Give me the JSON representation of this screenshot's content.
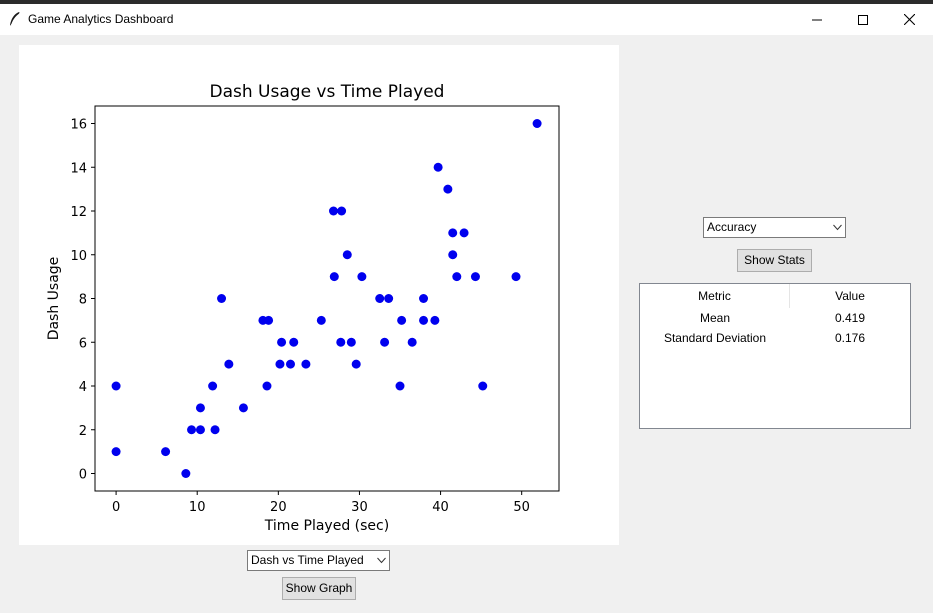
{
  "window": {
    "title": "Game Analytics Dashboard"
  },
  "graph_controls": {
    "selected_graph": "Dash vs Time Played",
    "show_graph_label": "Show Graph"
  },
  "stats_controls": {
    "selected_metric": "Accuracy",
    "show_stats_label": "Show Stats"
  },
  "stats_table": {
    "columns": [
      "Metric",
      "Value"
    ],
    "rows": [
      {
        "metric": "Mean",
        "value": "0.419"
      },
      {
        "metric": "Standard Deviation",
        "value": "0.176"
      }
    ]
  },
  "colors": {
    "point": "#0000ee"
  },
  "chart_data": {
    "type": "scatter",
    "title": "Dash Usage vs Time Played",
    "xlabel": "Time Played (sec)",
    "ylabel": "Dash Usage",
    "xlim": [
      -2.6,
      54.6
    ],
    "ylim": [
      -0.8,
      16.8
    ],
    "xticks": [
      0,
      10,
      20,
      30,
      40,
      50
    ],
    "yticks": [
      0,
      2,
      4,
      6,
      8,
      10,
      12,
      14,
      16
    ],
    "grid": false,
    "points": [
      {
        "x": 0,
        "y": 4
      },
      {
        "x": 0,
        "y": 1
      },
      {
        "x": 6.1,
        "y": 1
      },
      {
        "x": 8.6,
        "y": 0
      },
      {
        "x": 9.3,
        "y": 2
      },
      {
        "x": 10.4,
        "y": 3
      },
      {
        "x": 10.4,
        "y": 2
      },
      {
        "x": 11.9,
        "y": 4
      },
      {
        "x": 12.2,
        "y": 2
      },
      {
        "x": 13,
        "y": 8
      },
      {
        "x": 13.9,
        "y": 5
      },
      {
        "x": 15.7,
        "y": 3
      },
      {
        "x": 18.1,
        "y": 7
      },
      {
        "x": 18.8,
        "y": 7
      },
      {
        "x": 18.6,
        "y": 4
      },
      {
        "x": 20.2,
        "y": 5
      },
      {
        "x": 20.4,
        "y": 6
      },
      {
        "x": 21.5,
        "y": 5
      },
      {
        "x": 21.9,
        "y": 6
      },
      {
        "x": 23.4,
        "y": 5
      },
      {
        "x": 25.3,
        "y": 7
      },
      {
        "x": 26.8,
        "y": 12
      },
      {
        "x": 27.8,
        "y": 12
      },
      {
        "x": 26.9,
        "y": 9
      },
      {
        "x": 27.7,
        "y": 6
      },
      {
        "x": 28.5,
        "y": 10
      },
      {
        "x": 29,
        "y": 6
      },
      {
        "x": 29.6,
        "y": 5
      },
      {
        "x": 30.3,
        "y": 9
      },
      {
        "x": 32.5,
        "y": 8
      },
      {
        "x": 33.1,
        "y": 6
      },
      {
        "x": 33.6,
        "y": 8
      },
      {
        "x": 35,
        "y": 4
      },
      {
        "x": 35.2,
        "y": 7
      },
      {
        "x": 36.5,
        "y": 6
      },
      {
        "x": 37.9,
        "y": 8
      },
      {
        "x": 37.9,
        "y": 7
      },
      {
        "x": 39.3,
        "y": 7
      },
      {
        "x": 39.7,
        "y": 14
      },
      {
        "x": 40.9,
        "y": 13
      },
      {
        "x": 41.5,
        "y": 11
      },
      {
        "x": 41.5,
        "y": 10
      },
      {
        "x": 42,
        "y": 9
      },
      {
        "x": 42.9,
        "y": 11
      },
      {
        "x": 44.3,
        "y": 9
      },
      {
        "x": 45.2,
        "y": 4
      },
      {
        "x": 49.3,
        "y": 9
      },
      {
        "x": 51.9,
        "y": 16
      }
    ]
  }
}
